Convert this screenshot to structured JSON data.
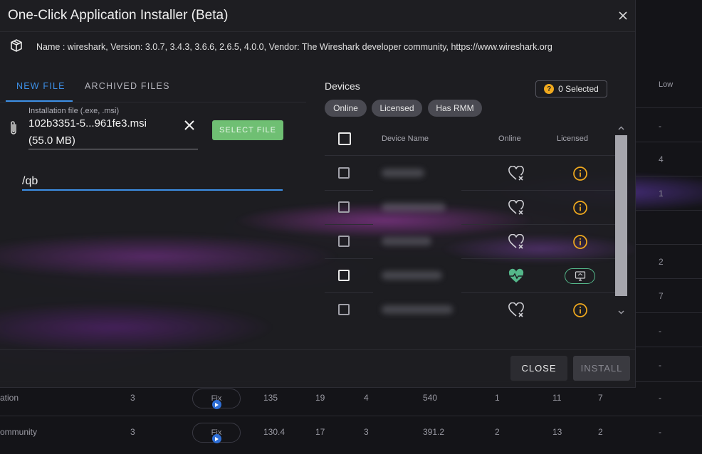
{
  "background": {
    "column_header": "Low",
    "side_values": [
      "-",
      "4",
      "1",
      "2",
      "7",
      "-",
      "-",
      "-"
    ],
    "rows": [
      {
        "name": "ation",
        "c1": "3",
        "fix_label": "Fix",
        "c2": "135",
        "c3": "19",
        "c4": "4",
        "c5": "540",
        "c6": "1",
        "c7": "11",
        "c8": "7",
        "c9": "-"
      },
      {
        "name": "ommunity",
        "c1": "3",
        "fix_label": "Fix",
        "c2": "130.4",
        "c3": "17",
        "c4": "3",
        "c5": "391.2",
        "c6": "2",
        "c7": "13",
        "c8": "2",
        "c9": "-"
      }
    ]
  },
  "modal": {
    "title": "One-Click Application Installer (Beta)",
    "package_info": "Name : wireshark, Version: 3.0.7, 3.4.3, 3.6.6, 2.6.5, 4.0.0, Vendor: The Wireshark developer community, https://www.wireshark.org",
    "tabs": [
      {
        "label": "NEW FILE",
        "active": true
      },
      {
        "label": "ARCHIVED FILES",
        "active": false
      }
    ],
    "file": {
      "label": "Installation file (.exe, .msi)",
      "name": "102b3351-5...961fe3.msi",
      "size": "(55.0 MB)",
      "select_button": "SELECT FILE"
    },
    "arguments": {
      "value": "/qb"
    },
    "devices": {
      "title": "Devices",
      "selected_count": "0 Selected",
      "filters": [
        "Online",
        "Licensed",
        "Has RMM"
      ],
      "columns": {
        "name": "Device Name",
        "online": "Online",
        "licensed": "Licensed"
      },
      "rows": [
        {
          "online": false,
          "licensed_icon": "info-icon"
        },
        {
          "online": false,
          "licensed_icon": "info-icon"
        },
        {
          "online": false,
          "licensed_icon": "info-icon"
        },
        {
          "online": true,
          "licensed_icon": "rmm-icon"
        },
        {
          "online": false,
          "licensed_icon": "info-icon"
        }
      ]
    },
    "footer": {
      "close_label": "CLOSE",
      "install_label": "INSTALL"
    }
  },
  "colors": {
    "accent": "#3d8fe6",
    "select_button": "#6fbf73",
    "warning": "#f0a91e",
    "online": "#54b78a"
  }
}
